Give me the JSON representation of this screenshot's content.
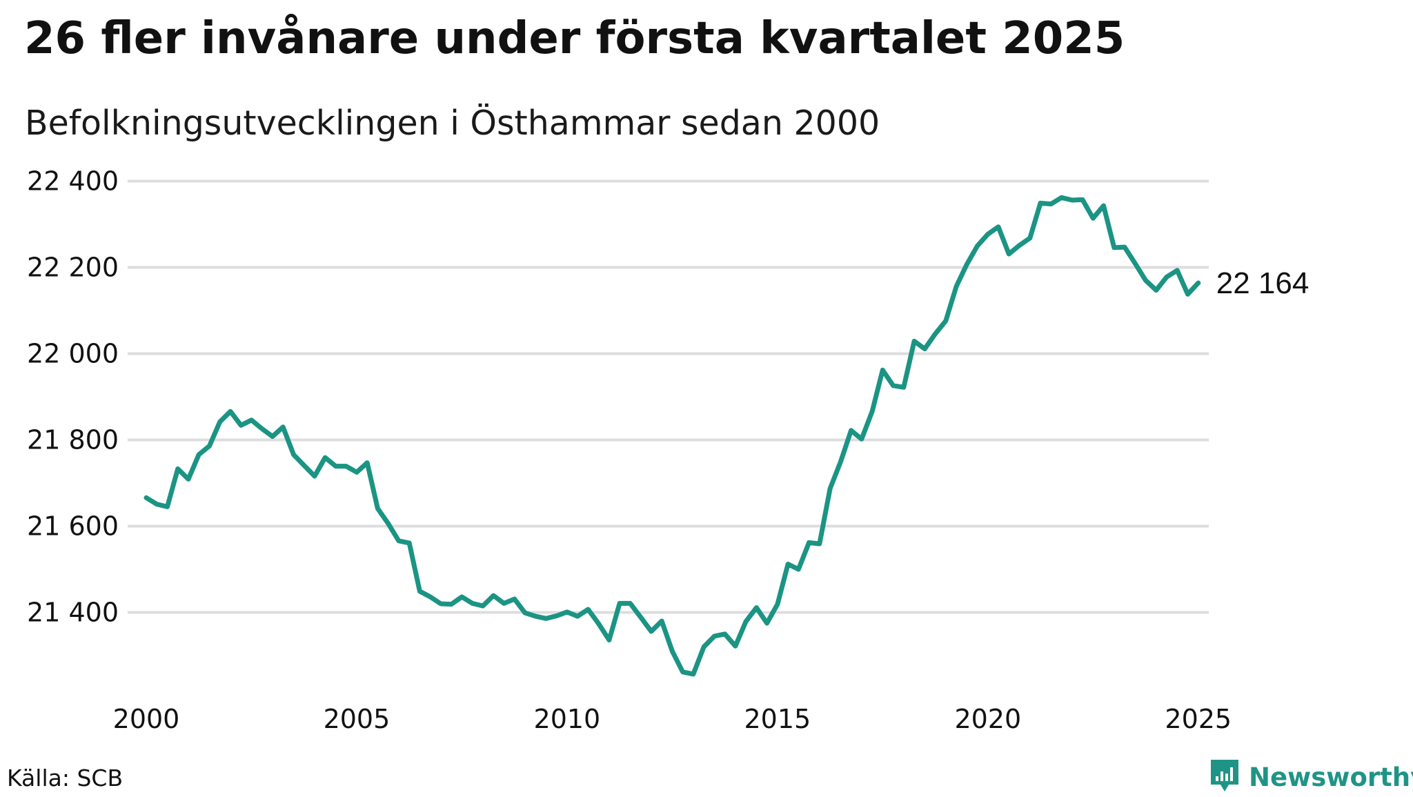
{
  "header": {
    "title": "26 fler invånare under första kvartalet 2025",
    "subtitle": "Befolkningsutvecklingen i Östhammar sedan 2000"
  },
  "footer": {
    "source": "Källa: SCB",
    "brand": "Newsworthy",
    "brand_icon": "bar-chart-logo-icon",
    "brand_color": "#1f9486"
  },
  "colors": {
    "line": "#1b9484",
    "grid": "#dddddd",
    "text": "#111111"
  },
  "chart_data": {
    "type": "line",
    "title": "26 fler invånare under första kvartalet 2025",
    "subtitle": "Befolkningsutvecklingen i Östhammar sedan 2000",
    "xlabel": "",
    "ylabel": "",
    "xlim": [
      2000,
      2025.25
    ],
    "ylim": [
      21220,
      22420
    ],
    "x_ticks": [
      2000,
      2005,
      2010,
      2015,
      2020,
      2025
    ],
    "x_tick_labels": [
      "2000",
      "2005",
      "2010",
      "2015",
      "2020",
      "2025"
    ],
    "y_ticks": [
      21400,
      21600,
      21800,
      22000,
      22200,
      22400
    ],
    "y_tick_labels": [
      "21 400",
      "21 600",
      "21 800",
      "22 000",
      "22 200",
      "22 400"
    ],
    "grid": "horizontal",
    "legend": "none",
    "end_label": "22 164",
    "series": [
      {
        "x": [
          2000,
          2000.25,
          2000.5,
          2000.75,
          2001,
          2001.25,
          2001.5,
          2001.75,
          2002,
          2002.25,
          2002.5,
          2002.75,
          2003,
          2003.25,
          2003.5,
          2003.75,
          2004,
          2004.25,
          2004.5,
          2004.75,
          2005,
          2005.25,
          2005.5,
          2005.75,
          2006,
          2006.25,
          2006.5,
          2006.75,
          2007,
          2007.25,
          2007.5,
          2007.75,
          2008,
          2008.25,
          2008.5,
          2008.75,
          2009,
          2009.25,
          2009.5,
          2009.75,
          2010,
          2010.25,
          2010.5,
          2010.75,
          2011,
          2011.25,
          2011.5,
          2011.75,
          2012,
          2012.25,
          2012.5,
          2012.75,
          2013,
          2013.25,
          2013.5,
          2013.75,
          2014,
          2014.25,
          2014.5,
          2014.75,
          2015,
          2015.25,
          2015.5,
          2015.75,
          2016,
          2016.25,
          2016.5,
          2016.75,
          2017,
          2017.25,
          2017.5,
          2017.75,
          2018,
          2018.25,
          2018.5,
          2018.75,
          2019,
          2019.25,
          2019.5,
          2019.75,
          2020,
          2020.25,
          2020.5,
          2020.75,
          2021,
          2021.25,
          2021.5,
          2021.75,
          2022,
          2022.25,
          2022.5,
          2022.75,
          2023,
          2023.25,
          2023.5,
          2023.75,
          2024,
          2024.25,
          2024.5,
          2024.75,
          2025
        ],
        "values": [
          21666,
          21651,
          21645,
          21733,
          21709,
          21766,
          21786,
          21842,
          21866,
          21834,
          21846,
          21826,
          21808,
          21830,
          21766,
          21741,
          21716,
          21759,
          21739,
          21739,
          21725,
          21747,
          21641,
          21606,
          21566,
          21561,
          21449,
          21436,
          21420,
          21419,
          21436,
          21421,
          21415,
          21439,
          21421,
          21431,
          21399,
          21391,
          21386,
          21392,
          21401,
          21391,
          21407,
          21374,
          21336,
          21421,
          21421,
          21389,
          21356,
          21380,
          21310,
          21262,
          21257,
          21320,
          21345,
          21350,
          21322,
          21379,
          21411,
          21375,
          21419,
          21512,
          21500,
          21562,
          21559,
          21687,
          21749,
          21822,
          21802,
          21866,
          21962,
          21926,
          21922,
          22029,
          22011,
          22046,
          22076,
          22156,
          22207,
          22250,
          22277,
          22294,
          22231,
          22251,
          22268,
          22349,
          22347,
          22362,
          22356,
          22357,
          22314,
          22343,
          22246,
          22247,
          22209,
          22170,
          22147,
          22178,
          22193,
          22138,
          22164
        ]
      }
    ]
  }
}
